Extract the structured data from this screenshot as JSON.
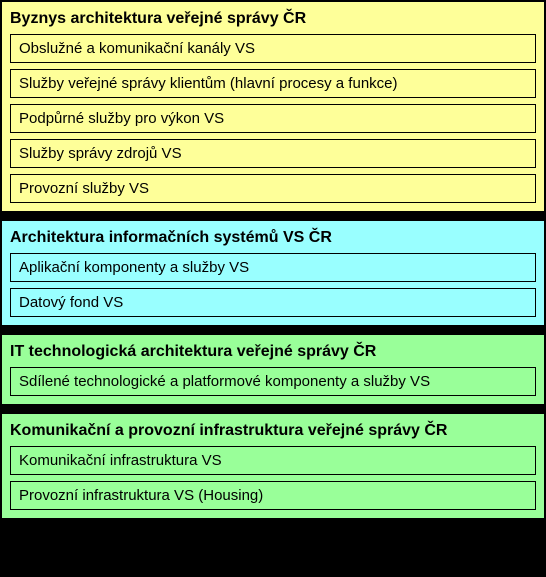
{
  "layers": [
    {
      "title": "Byznys architektura veřejné správy ČR",
      "bg": "#feff99",
      "item_bg": "#feff99",
      "items": [
        "Obslužné a komunikační kanály VS",
        "Služby veřejné správy klientům (hlavní procesy a funkce)",
        "Podpůrné služby pro výkon VS",
        "Služby správy zdrojů VS",
        "Provozní služby VS"
      ]
    },
    {
      "title": "Architektura informačních systémů VS ČR",
      "bg": "#99ffff",
      "item_bg": "#99ffff",
      "items": [
        "Aplikační komponenty a služby VS",
        "Datový fond VS"
      ]
    },
    {
      "title": "IT technologická architektura veřejné správy ČR",
      "bg": "#99ff99",
      "item_bg": "#99ff99",
      "items": [
        "Sdílené technologické a platformové komponenty a služby VS"
      ]
    },
    {
      "title": "Komunikační a provozní infrastruktura veřejné správy ČR",
      "bg": "#99ff99",
      "item_bg": "#99ff99",
      "items": [
        "Komunikační infrastruktura VS",
        "Provozní infrastruktura VS (Housing)"
      ]
    }
  ],
  "title_color": "#000000",
  "item_text_color": "#000000",
  "border_color": "#000000"
}
